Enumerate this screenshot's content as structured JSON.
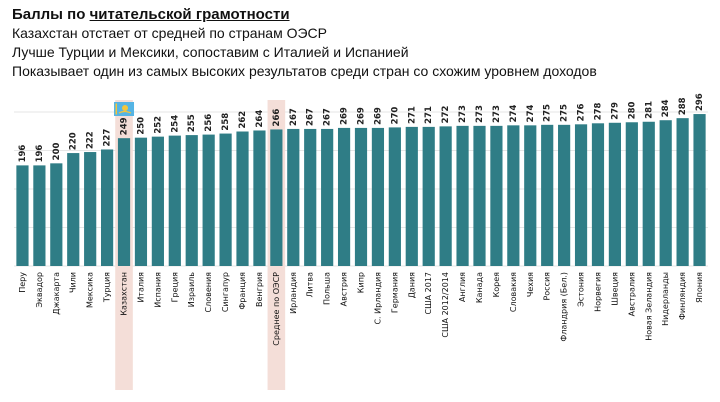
{
  "header": {
    "title_prefix": "Баллы по ",
    "title_emph": "читательской грамотности",
    "lines": [
      "Казахстан отстает от средней по странам ОЭСР",
      "Лучше Турции и Мексики, сопоставим с Италией и Испанией",
      "Показывает один из самых высоких результатов среди стран со схожим уровнем доходов"
    ]
  },
  "colors": {
    "bar": "#2f7d86",
    "highlight": "#f4ded8",
    "grid": "#e6e6e6",
    "flag": "#55b4e4",
    "flag_sun": "#f4c53a"
  },
  "chart_data": {
    "type": "bar",
    "title": "Баллы по читательской грамотности",
    "categories": [
      "Перу",
      "Эквадор",
      "Джакарта",
      "Чили",
      "Мексика",
      "Турция",
      "Казахстан",
      "Италия",
      "Испания",
      "Греция",
      "Израиль",
      "Словения",
      "Сингапур",
      "Франция",
      "Венгрия",
      "Среднее по ОЭСР",
      "Ирландия",
      "Литва",
      "Польша",
      "Австрия",
      "Кипр",
      "С. Ирландия",
      "Германия",
      "Дания",
      "США 2017",
      "США 2012/2014",
      "Англия",
      "Канада",
      "Корея",
      "Словакия",
      "Чехия",
      "Россия",
      "Фландрия (Бел.)",
      "Эстония",
      "Норвегия",
      "Швеция",
      "Австралия",
      "Новая Зеландия",
      "Нидерланды",
      "Финляндия",
      "Япония"
    ],
    "values": [
      196,
      196,
      200,
      220,
      222,
      227,
      249,
      250,
      252,
      254,
      255,
      256,
      258,
      262,
      264,
      266,
      267,
      267,
      267,
      269,
      269,
      269,
      270,
      271,
      271,
      272,
      273,
      273,
      273,
      274,
      274,
      275,
      275,
      276,
      278,
      279,
      280,
      281,
      284,
      288,
      296
    ],
    "highlighted": [
      "Казахстан",
      "Среднее по ОЭСР"
    ],
    "flag_on": "Казахстан",
    "xlabel": "",
    "ylabel": "",
    "ylim": [
      0,
      300
    ],
    "grid": true,
    "legend": "none"
  }
}
